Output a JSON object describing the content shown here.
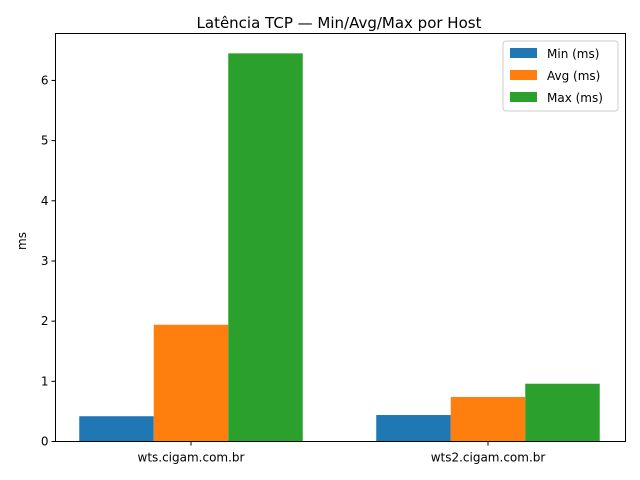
{
  "chart_data": {
    "type": "bar",
    "title": "Latência TCP — Min/Avg/Max por Host",
    "xlabel": "",
    "ylabel": "ms",
    "categories": [
      "wts.cigam.com.br",
      "wts2.cigam.com.br"
    ],
    "series": [
      {
        "name": "Min (ms)",
        "color": "#1f77b4",
        "values": [
          0.42,
          0.44
        ]
      },
      {
        "name": "Avg (ms)",
        "color": "#ff7f0e",
        "values": [
          1.94,
          0.74
        ]
      },
      {
        "name": "Max (ms)",
        "color": "#2ca02c",
        "values": [
          6.45,
          0.96
        ]
      }
    ],
    "ylim": [
      0,
      6.78
    ],
    "yticks": [
      0,
      1,
      2,
      3,
      4,
      5,
      6
    ],
    "legend_position": "top-right",
    "grid": false
  }
}
